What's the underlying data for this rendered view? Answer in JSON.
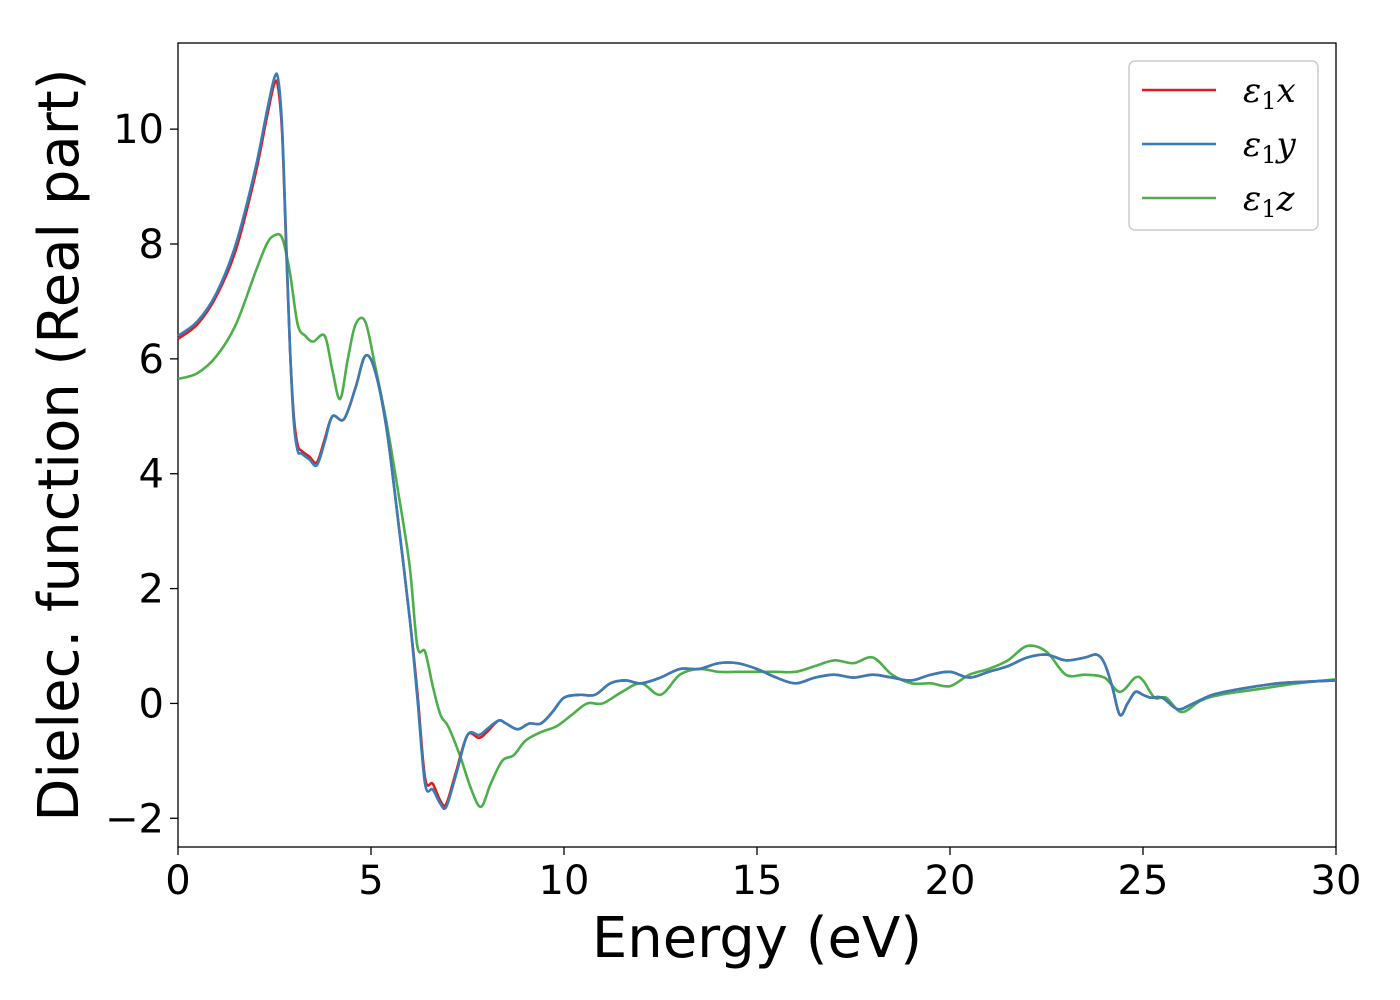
{
  "chart_data": {
    "type": "line",
    "xlabel": "Energy (eV)",
    "ylabel": "Dielec. function (Real part)",
    "xlim": [
      0,
      30
    ],
    "ylim": [
      -2.5,
      11.5
    ],
    "xticks": [
      0,
      5,
      10,
      15,
      20,
      25,
      30
    ],
    "xtick_labels": [
      "0",
      "5",
      "10",
      "15",
      "20",
      "25",
      "30"
    ],
    "yticks": [
      -2,
      0,
      2,
      4,
      6,
      8,
      10
    ],
    "ytick_labels": [
      "−2",
      "0",
      "2",
      "4",
      "6",
      "8",
      "10"
    ],
    "grid": false,
    "legend_position": "top-right",
    "series": [
      {
        "name": "ε₁x",
        "legend_symbol": "ε",
        "legend_sub": "1",
        "legend_suffix": "x",
        "color": "#e41a1c",
        "x": [
          0,
          0.5,
          1,
          1.5,
          2,
          2.3,
          2.5,
          2.6,
          2.7,
          2.8,
          2.9,
          3.0,
          3.1,
          3.2,
          3.4,
          3.6,
          3.8,
          4.0,
          4.3,
          4.6,
          4.85,
          5.1,
          5.4,
          5.7,
          6.0,
          6.2,
          6.4,
          6.6,
          6.8,
          6.95,
          7.2,
          7.5,
          7.8,
          8.0,
          8.3,
          8.5,
          8.8,
          9.1,
          9.4,
          9.7,
          10.0,
          10.4,
          10.8,
          11.2,
          11.6,
          12.0,
          12.5,
          13.0,
          13.5,
          14.0,
          14.5,
          15.0,
          15.5,
          16.0,
          16.5,
          17.0,
          17.5,
          18.0,
          18.5,
          19.0,
          19.5,
          20.0,
          20.5,
          21.0,
          21.5,
          22.0,
          22.5,
          23.0,
          23.5,
          23.8,
          24.0,
          24.2,
          24.4,
          24.6,
          24.8,
          25.0,
          25.2,
          25.5,
          25.9,
          26.3,
          26.8,
          27.5,
          28.5,
          29.3,
          30.0
        ],
        "y": [
          6.35,
          6.6,
          7.1,
          7.9,
          9.2,
          10.2,
          10.8,
          10.7,
          9.9,
          8.0,
          6.2,
          5.0,
          4.5,
          4.4,
          4.3,
          4.2,
          4.6,
          5.0,
          4.95,
          5.5,
          6.05,
          5.8,
          4.8,
          3.2,
          1.5,
          0.2,
          -1.3,
          -1.4,
          -1.7,
          -1.75,
          -1.2,
          -0.55,
          -0.6,
          -0.5,
          -0.3,
          -0.35,
          -0.45,
          -0.35,
          -0.35,
          -0.15,
          0.1,
          0.15,
          0.15,
          0.35,
          0.4,
          0.35,
          0.45,
          0.6,
          0.6,
          0.7,
          0.7,
          0.6,
          0.45,
          0.35,
          0.45,
          0.5,
          0.45,
          0.5,
          0.45,
          0.4,
          0.5,
          0.55,
          0.45,
          0.55,
          0.65,
          0.8,
          0.85,
          0.75,
          0.8,
          0.85,
          0.7,
          0.3,
          -0.2,
          0.0,
          0.2,
          0.15,
          0.1,
          0.1,
          -0.1,
          0.0,
          0.15,
          0.25,
          0.35,
          0.38,
          0.4
        ]
      },
      {
        "name": "ε₁y",
        "legend_symbol": "ε",
        "legend_sub": "1",
        "legend_suffix": "y",
        "color": "#377eb8",
        "x": [
          0,
          0.5,
          1,
          1.5,
          2,
          2.3,
          2.5,
          2.6,
          2.7,
          2.8,
          2.9,
          3.0,
          3.1,
          3.2,
          3.4,
          3.6,
          3.8,
          4.0,
          4.3,
          4.6,
          4.85,
          5.1,
          5.4,
          5.7,
          6.0,
          6.2,
          6.4,
          6.6,
          6.8,
          6.95,
          7.2,
          7.5,
          7.8,
          8.0,
          8.3,
          8.5,
          8.8,
          9.1,
          9.4,
          9.7,
          10.0,
          10.4,
          10.8,
          11.2,
          11.6,
          12.0,
          12.5,
          13.0,
          13.5,
          14.0,
          14.5,
          15.0,
          15.5,
          16.0,
          16.5,
          17.0,
          17.5,
          18.0,
          18.5,
          19.0,
          19.5,
          20.0,
          20.5,
          21.0,
          21.5,
          22.0,
          22.5,
          23.0,
          23.5,
          23.8,
          24.0,
          24.2,
          24.4,
          24.6,
          24.8,
          25.0,
          25.2,
          25.5,
          25.9,
          26.3,
          26.8,
          27.5,
          28.5,
          29.3,
          30.0
        ],
        "y": [
          6.4,
          6.65,
          7.15,
          8.0,
          9.3,
          10.3,
          10.9,
          10.85,
          10.0,
          8.1,
          6.2,
          4.9,
          4.4,
          4.35,
          4.25,
          4.15,
          4.55,
          5.0,
          4.95,
          5.5,
          6.05,
          5.8,
          4.8,
          3.2,
          1.5,
          0.1,
          -1.4,
          -1.5,
          -1.75,
          -1.8,
          -1.25,
          -0.55,
          -0.55,
          -0.45,
          -0.3,
          -0.35,
          -0.45,
          -0.35,
          -0.35,
          -0.15,
          0.1,
          0.15,
          0.15,
          0.35,
          0.4,
          0.35,
          0.45,
          0.6,
          0.6,
          0.7,
          0.7,
          0.6,
          0.45,
          0.35,
          0.45,
          0.5,
          0.45,
          0.5,
          0.45,
          0.4,
          0.5,
          0.55,
          0.45,
          0.55,
          0.65,
          0.8,
          0.85,
          0.75,
          0.8,
          0.85,
          0.7,
          0.3,
          -0.2,
          0.0,
          0.2,
          0.15,
          0.1,
          0.1,
          -0.1,
          0.0,
          0.15,
          0.25,
          0.35,
          0.38,
          0.4
        ]
      },
      {
        "name": "ε₁z",
        "legend_symbol": "ε",
        "legend_sub": "1",
        "legend_suffix": "z",
        "color": "#4daf4a",
        "x": [
          0,
          0.5,
          1,
          1.5,
          2,
          2.3,
          2.5,
          2.7,
          2.9,
          3.1,
          3.3,
          3.5,
          3.8,
          4.0,
          4.2,
          4.4,
          4.6,
          4.85,
          5.1,
          5.4,
          5.7,
          6.0,
          6.2,
          6.4,
          6.6,
          6.8,
          7.0,
          7.3,
          7.6,
          7.85,
          8.1,
          8.4,
          8.7,
          9.0,
          9.4,
          9.8,
          10.2,
          10.6,
          11.0,
          11.5,
          12.0,
          12.5,
          13.0,
          13.5,
          14.0,
          14.5,
          15.0,
          15.5,
          16.0,
          16.5,
          17.0,
          17.5,
          18.0,
          18.5,
          19.0,
          19.5,
          20.0,
          20.5,
          21.0,
          21.5,
          22.0,
          22.5,
          23.0,
          23.5,
          24.0,
          24.4,
          24.8,
          25.0,
          25.3,
          25.6,
          26.0,
          26.5,
          27.0,
          28.0,
          29.0,
          30.0
        ],
        "y": [
          5.65,
          5.75,
          6.05,
          6.6,
          7.5,
          8.0,
          8.15,
          8.1,
          7.5,
          6.6,
          6.4,
          6.3,
          6.4,
          5.8,
          5.3,
          6.0,
          6.6,
          6.65,
          5.9,
          4.9,
          3.7,
          2.4,
          1.0,
          0.9,
          0.3,
          -0.2,
          -0.4,
          -0.9,
          -1.5,
          -1.8,
          -1.4,
          -1.0,
          -0.9,
          -0.65,
          -0.5,
          -0.4,
          -0.2,
          0.0,
          0.0,
          0.2,
          0.35,
          0.15,
          0.5,
          0.6,
          0.55,
          0.55,
          0.55,
          0.55,
          0.55,
          0.65,
          0.75,
          0.7,
          0.8,
          0.5,
          0.35,
          0.35,
          0.3,
          0.5,
          0.6,
          0.75,
          1.0,
          0.9,
          0.5,
          0.5,
          0.45,
          0.2,
          0.45,
          0.4,
          0.1,
          0.1,
          -0.15,
          0.05,
          0.15,
          0.25,
          0.35,
          0.42
        ]
      }
    ]
  }
}
